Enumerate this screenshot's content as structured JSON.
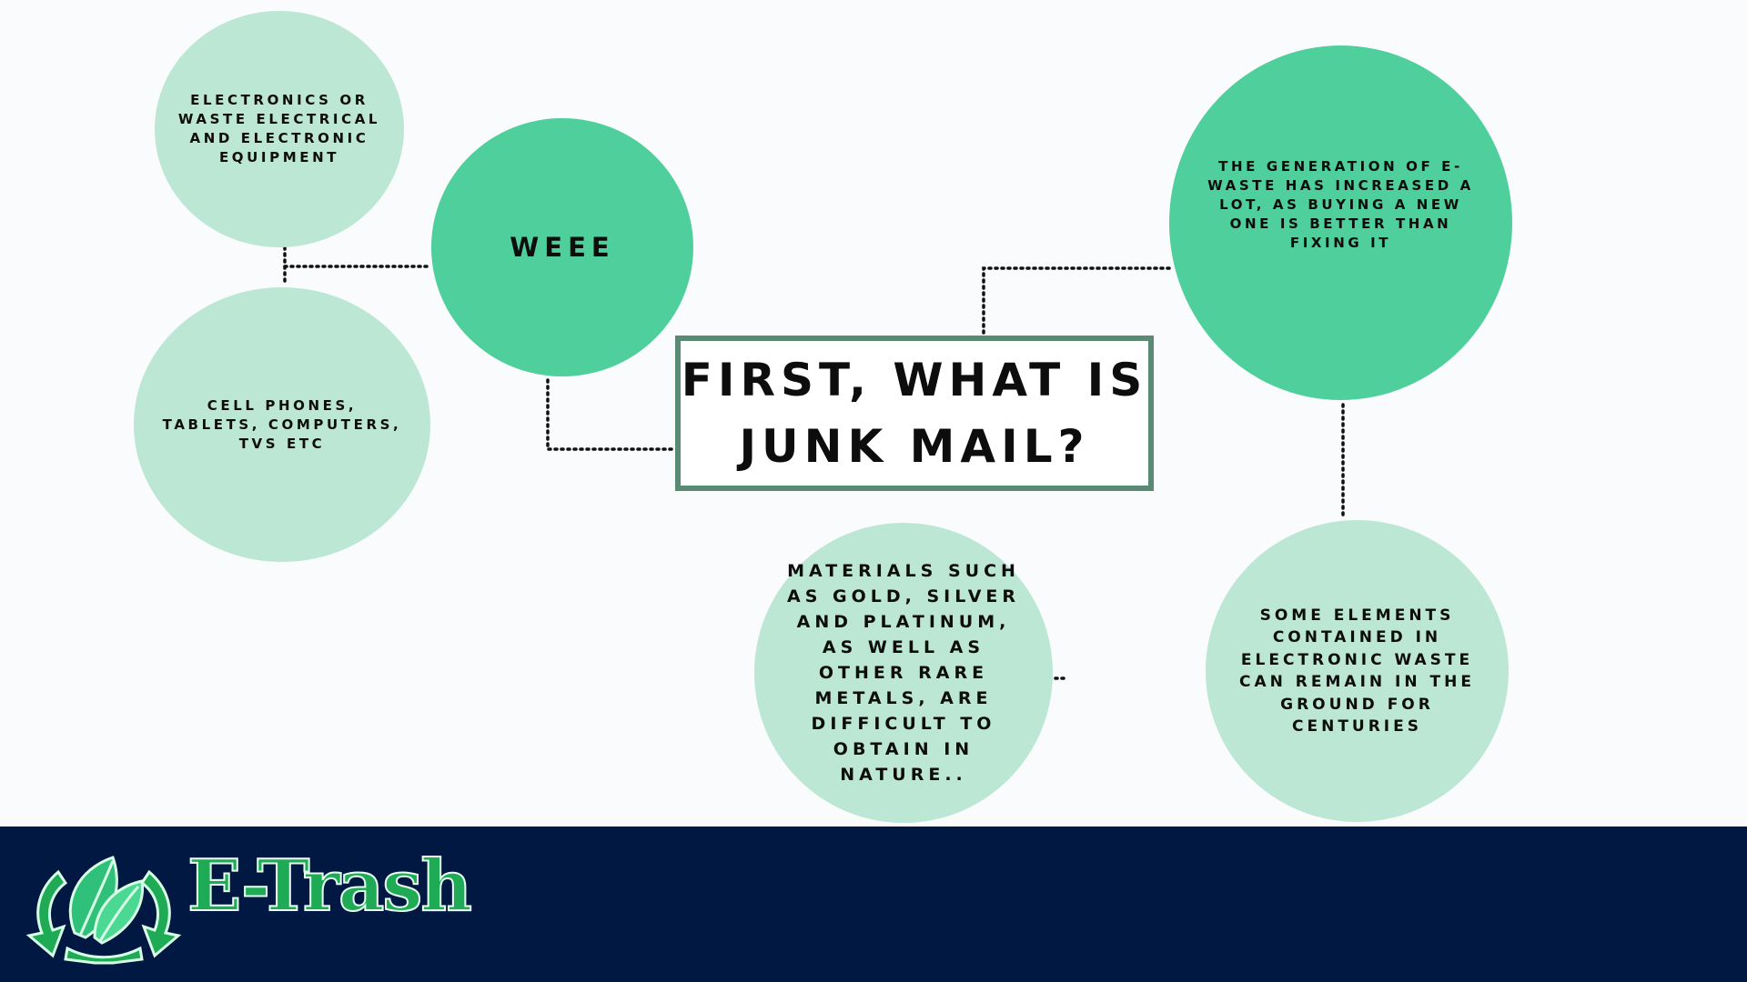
{
  "diagram": {
    "title": "FIRST, WHAT IS JUNK MAIL?",
    "nodes": {
      "definition": "ELECTRONICS OR WASTE ELECTRICAL AND ELECTRONIC EQUIPMENT",
      "weee": "WEEE",
      "examples": "CELL PHONES, TABLETS, COMPUTERS, TVS ETC",
      "generation": "THE GENERATION OF E-WASTE HAS INCREASED A LOT, AS BUYING A NEW ONE IS BETTER THAN FIXING IT",
      "materials": "MATERIALS SUCH AS GOLD, SILVER AND PLATINUM, AS WELL AS OTHER RARE METALS, ARE DIFFICULT TO OBTAIN IN NATURE..",
      "elements": "SOME ELEMENTS CONTAINED IN ELECTRONIC WASTE CAN REMAIN IN THE GROUND FOR CENTURIES"
    }
  },
  "footer": {
    "brand": "E-Trash",
    "logo_icon": "recycle-leaf-icon"
  },
  "colors": {
    "light_bubble": "#bde7d5",
    "dark_bubble": "#4ecf9b",
    "title_border": "#5b8a74",
    "footer_bg": "#011843",
    "brand_green": "#1faa55"
  }
}
